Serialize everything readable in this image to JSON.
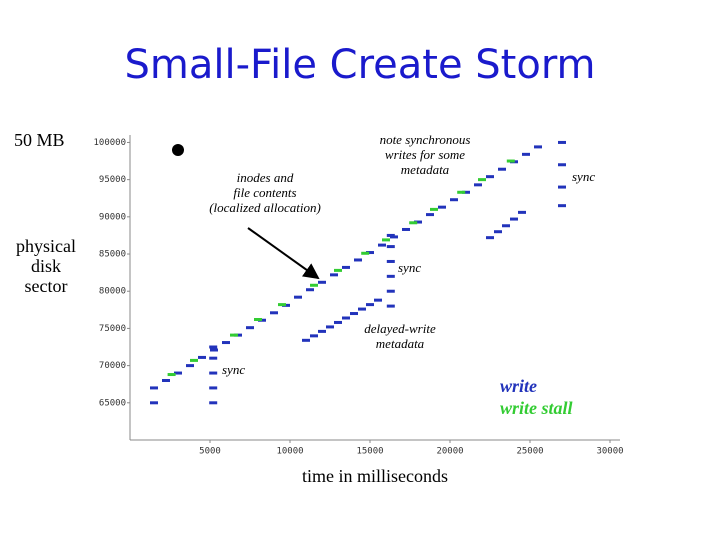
{
  "chart_data": {
    "type": "scatter",
    "title": "Small-File Create Storm",
    "xlabel": "time in milliseconds",
    "ylabel": "physical disk sector",
    "xlim": [
      0,
      31000
    ],
    "xticks": [
      5000,
      10000,
      15000,
      20000,
      25000,
      30000
    ],
    "ylim": [
      60000,
      101000
    ],
    "yticks": [
      65000,
      70000,
      75000,
      80000,
      85000,
      90000,
      95000,
      100000
    ],
    "annotations": [
      "50 MB",
      "inodes and\nfile contents\n(localized allocation)",
      "note synchronous\nwrites for some\nmetadata",
      "sync",
      "sync",
      "sync",
      "delayed-write\nmetadata"
    ],
    "series": [
      {
        "name": "write",
        "color": "#2233bb",
        "x": [
          1500,
          2250,
          3000,
          3750,
          4500,
          5250,
          6000,
          6750,
          7500,
          8250,
          9000,
          9750,
          10500,
          11250,
          12000,
          12750,
          13500,
          14250,
          15000,
          15750,
          16500,
          17250,
          18000,
          18750,
          19500,
          20250,
          21000,
          21750,
          22500,
          23250,
          24000,
          24750,
          25500,
          11000,
          11500,
          12000,
          12500,
          13000,
          13500,
          14000,
          14500,
          15000,
          15500,
          22500,
          23000,
          23500,
          24000,
          24500,
          1500,
          5200,
          5200,
          5200,
          5200,
          5200,
          16300,
          16300,
          16300,
          16300,
          16300,
          16300,
          27000,
          27000,
          27000,
          27000
        ],
        "y": [
          67000,
          68000,
          69000,
          70000,
          71100,
          72100,
          73100,
          74100,
          75100,
          76100,
          77100,
          78100,
          79200,
          80200,
          81200,
          82200,
          83200,
          84200,
          85200,
          86200,
          87300,
          88300,
          89300,
          90300,
          91300,
          92300,
          93300,
          94300,
          95400,
          96400,
          97400,
          98400,
          99400,
          73400,
          74000,
          74600,
          75200,
          75800,
          76400,
          77000,
          77600,
          78200,
          78800,
          87200,
          88000,
          88800,
          89700,
          90600,
          65000,
          65000,
          67000,
          69000,
          71000,
          72500,
          78000,
          80000,
          82000,
          84000,
          86000,
          87500,
          91500,
          94000,
          97000,
          100000
        ]
      },
      {
        "name": "write stall",
        "color": "#33cc33",
        "x": [
          2600,
          4000,
          6500,
          8000,
          9500,
          11500,
          13000,
          14700,
          16000,
          17700,
          19000,
          20700,
          22000,
          23800
        ],
        "y": [
          68800,
          70700,
          74100,
          76200,
          78200,
          80800,
          82800,
          85100,
          86900,
          89200,
          91000,
          93300,
          95000,
          97500
        ]
      }
    ]
  }
}
